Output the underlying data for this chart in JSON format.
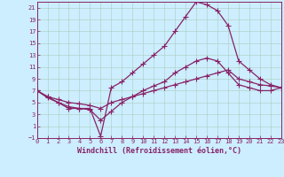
{
  "xlabel": "Windchill (Refroidissement éolien,°C)",
  "background_color": "#cceeff",
  "grid_color": "#aaccbb",
  "line_color": "#882266",
  "xlim": [
    0,
    23
  ],
  "ylim": [
    -1,
    22
  ],
  "xticks": [
    0,
    1,
    2,
    3,
    4,
    5,
    6,
    7,
    8,
    9,
    10,
    11,
    12,
    13,
    14,
    15,
    16,
    17,
    18,
    19,
    20,
    21,
    22,
    23
  ],
  "yticks": [
    -1,
    1,
    3,
    5,
    7,
    9,
    11,
    13,
    15,
    17,
    19,
    21
  ],
  "curve1_x": [
    0,
    1,
    2,
    3,
    4,
    5,
    6,
    7,
    8,
    9,
    10,
    11,
    12,
    13,
    14,
    15,
    16,
    17,
    18,
    19,
    20,
    21,
    22,
    23
  ],
  "curve1_y": [
    7,
    6,
    5,
    4,
    4,
    4,
    -0.7,
    7.5,
    8.5,
    10,
    11.5,
    13,
    14.5,
    17,
    19.5,
    22,
    21.5,
    20.5,
    18,
    12,
    10.5,
    9,
    8,
    7.5
  ],
  "curve2_x": [
    0,
    1,
    2,
    3,
    4,
    5,
    6,
    7,
    8,
    9,
    10,
    11,
    12,
    13,
    14,
    15,
    16,
    17,
    18,
    19,
    20,
    21,
    22,
    23
  ],
  "curve2_y": [
    7,
    6,
    5.5,
    5,
    4.8,
    4.5,
    4,
    5,
    5.5,
    6,
    6.5,
    7,
    7.5,
    8,
    8.5,
    9,
    9.5,
    10,
    10.5,
    9,
    8.5,
    8,
    7.8,
    7.5
  ],
  "curve3_x": [
    0,
    1,
    2,
    3,
    4,
    5,
    6,
    7,
    8,
    9,
    10,
    11,
    12,
    13,
    14,
    15,
    16,
    17,
    18,
    19,
    20,
    21,
    22,
    23
  ],
  "curve3_y": [
    7,
    5.8,
    5,
    4.3,
    4,
    3.8,
    2,
    3.5,
    5,
    6,
    7,
    7.8,
    8.5,
    10,
    11,
    12,
    12.5,
    12,
    10,
    8,
    7.5,
    7,
    7,
    7.5
  ],
  "marker": "+",
  "markersize": 4,
  "linewidth": 0.9,
  "tick_fontsize": 5,
  "xlabel_fontsize": 6
}
